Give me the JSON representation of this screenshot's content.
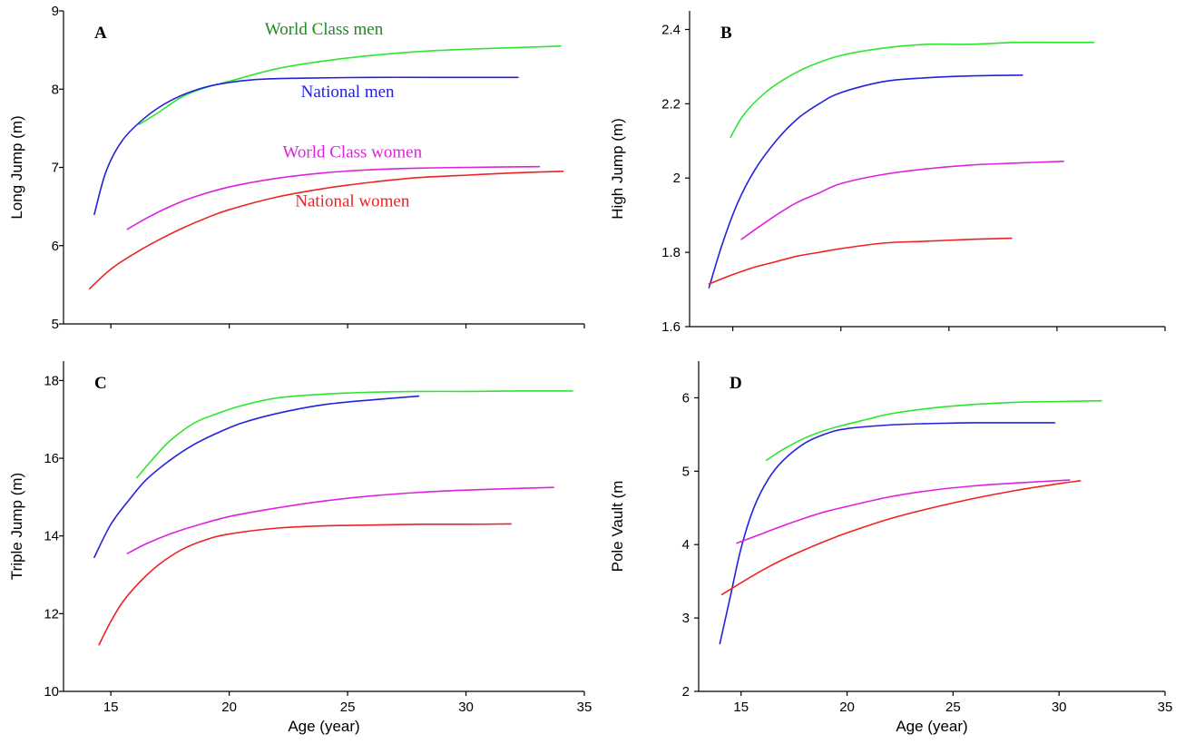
{
  "colors": {
    "world_class_men": "#2ee62e",
    "world_class_men_label": "#1f8a1f",
    "national_men": "#2222dd",
    "world_class_women": "#dd22dd",
    "national_women": "#ee2222"
  },
  "chart_data": [
    {
      "type": "line",
      "panel": "A",
      "xlabel": "",
      "ylabel": "Long Jump (m)",
      "xlim": [
        13,
        35
      ],
      "ylim": [
        5,
        9
      ],
      "xticks": [
        15,
        20,
        25,
        30,
        35
      ],
      "xtick_labels": [],
      "yticks": [
        5,
        6,
        7,
        8,
        9
      ],
      "ytick_labels": [
        "5",
        "6",
        "7",
        "8",
        "9"
      ],
      "series": [
        {
          "name": "World Class men",
          "key": "world_class_men",
          "label_color": "world_class_men_label",
          "x": [
            16.2,
            17,
            18,
            19,
            20,
            22,
            24,
            26,
            28,
            30,
            32,
            34
          ],
          "y": [
            7.55,
            7.7,
            7.9,
            8.02,
            8.1,
            8.26,
            8.36,
            8.43,
            8.48,
            8.51,
            8.53,
            8.55
          ]
        },
        {
          "name": "National men",
          "key": "national_men",
          "x": [
            14.3,
            14.8,
            15.5,
            16.5,
            17.5,
            18.5,
            19.5,
            21,
            23,
            26,
            29,
            32.2
          ],
          "y": [
            6.4,
            6.95,
            7.35,
            7.65,
            7.85,
            7.98,
            8.06,
            8.12,
            8.14,
            8.15,
            8.15,
            8.15
          ]
        },
        {
          "name": "World Class women",
          "key": "world_class_women",
          "x": [
            15.7,
            16.5,
            17.5,
            18.5,
            20,
            22,
            24,
            26,
            28,
            30,
            33.1
          ],
          "y": [
            6.21,
            6.35,
            6.5,
            6.62,
            6.75,
            6.86,
            6.93,
            6.97,
            6.99,
            7.0,
            7.01
          ]
        },
        {
          "name": "National women",
          "key": "national_women",
          "x": [
            14.1,
            15,
            16,
            17,
            18,
            19,
            20,
            22,
            24,
            26,
            28,
            30,
            32,
            34.1
          ],
          "y": [
            5.45,
            5.7,
            5.9,
            6.07,
            6.22,
            6.35,
            6.46,
            6.62,
            6.73,
            6.81,
            6.87,
            6.9,
            6.93,
            6.95
          ]
        }
      ]
    },
    {
      "type": "line",
      "panel": "B",
      "xlabel": "",
      "ylabel": "High Jump (m)",
      "xlim": [
        13,
        35
      ],
      "ylim": [
        1.6,
        2.45
      ],
      "xticks": [
        15,
        20,
        25,
        30,
        35
      ],
      "xtick_labels": [],
      "yticks": [
        1.6,
        1.8,
        2.0,
        2.2,
        2.4
      ],
      "ytick_labels": [
        "1.6",
        "1.8",
        "2",
        "2.2",
        "2.4"
      ],
      "series": [
        {
          "key": "world_class_men",
          "x": [
            14.9,
            15.5,
            16.5,
            17.5,
            18.5,
            20,
            22,
            24,
            26,
            28,
            30,
            31.7
          ],
          "y": [
            2.11,
            2.17,
            2.23,
            2.27,
            2.3,
            2.33,
            2.35,
            2.36,
            2.36,
            2.365,
            2.365,
            2.365
          ]
        },
        {
          "key": "national_men",
          "x": [
            13.9,
            14.5,
            15.2,
            16,
            17,
            18,
            19,
            20,
            22,
            24,
            26,
            28.4
          ],
          "y": [
            1.705,
            1.82,
            1.93,
            2.02,
            2.1,
            2.16,
            2.2,
            2.23,
            2.26,
            2.27,
            2.275,
            2.277
          ]
        },
        {
          "key": "world_class_women",
          "x": [
            15.4,
            16,
            17,
            18,
            19,
            20,
            22,
            24,
            26,
            28,
            30.3
          ],
          "y": [
            1.835,
            1.86,
            1.9,
            1.935,
            1.96,
            1.985,
            2.01,
            2.025,
            2.035,
            2.04,
            2.045
          ]
        },
        {
          "key": "national_women",
          "x": [
            13.9,
            15,
            16,
            17,
            18,
            19,
            20,
            22,
            24,
            26,
            27.9
          ],
          "y": [
            1.715,
            1.74,
            1.76,
            1.775,
            1.79,
            1.8,
            1.81,
            1.825,
            1.83,
            1.835,
            1.838
          ]
        }
      ]
    },
    {
      "type": "line",
      "panel": "C",
      "xlabel": "Age (year)",
      "ylabel": "Triple Jump (m)",
      "xlim": [
        13,
        35
      ],
      "ylim": [
        10,
        18.5
      ],
      "xticks": [
        15,
        20,
        25,
        30,
        35
      ],
      "xtick_labels": [
        "15",
        "20",
        "25",
        "30",
        "35"
      ],
      "yticks": [
        10,
        12,
        14,
        16,
        18
      ],
      "ytick_labels": [
        "10",
        "12",
        "14",
        "16",
        "18"
      ],
      "series": [
        {
          "key": "world_class_men",
          "x": [
            16.1,
            16.8,
            17.5,
            18.5,
            19.5,
            20.5,
            22,
            24,
            26,
            28,
            30,
            32,
            34.5
          ],
          "y": [
            15.5,
            16.0,
            16.45,
            16.9,
            17.15,
            17.35,
            17.55,
            17.65,
            17.7,
            17.72,
            17.72,
            17.73,
            17.73
          ]
        },
        {
          "key": "national_men",
          "x": [
            14.3,
            15,
            15.8,
            16.5,
            17.5,
            18.5,
            19.5,
            20.5,
            22,
            24,
            26,
            28
          ],
          "y": [
            13.45,
            14.3,
            14.95,
            15.45,
            15.95,
            16.35,
            16.65,
            16.9,
            17.15,
            17.38,
            17.5,
            17.6
          ]
        },
        {
          "key": "world_class_women",
          "x": [
            15.7,
            16.5,
            17.5,
            18.5,
            20,
            22,
            24,
            26,
            28,
            30,
            32,
            33.7
          ],
          "y": [
            13.55,
            13.8,
            14.05,
            14.25,
            14.5,
            14.72,
            14.9,
            15.03,
            15.12,
            15.18,
            15.22,
            15.25
          ]
        },
        {
          "key": "national_women",
          "x": [
            14.5,
            15,
            15.5,
            16.2,
            17,
            18,
            19,
            20,
            22,
            24,
            26,
            28,
            30,
            31.9
          ],
          "y": [
            11.2,
            11.8,
            12.3,
            12.8,
            13.25,
            13.65,
            13.9,
            14.05,
            14.2,
            14.26,
            14.28,
            14.3,
            14.3,
            14.31
          ]
        }
      ]
    },
    {
      "type": "line",
      "panel": "D",
      "xlabel": "Age (year)",
      "ylabel": "Pole Vault (m",
      "xlim": [
        13,
        35
      ],
      "ylim": [
        2,
        6.5
      ],
      "xticks": [
        15,
        20,
        25,
        30,
        35
      ],
      "xtick_labels": [
        "15",
        "20",
        "25",
        "30",
        "35"
      ],
      "yticks": [
        2,
        3,
        4,
        5,
        6
      ],
      "ytick_labels": [
        "2",
        "3",
        "4",
        "5",
        "6"
      ],
      "series": [
        {
          "key": "world_class_men",
          "x": [
            16.2,
            17,
            18,
            19,
            20,
            21,
            22,
            24,
            26,
            28,
            30,
            32
          ],
          "y": [
            5.15,
            5.3,
            5.45,
            5.56,
            5.64,
            5.71,
            5.78,
            5.86,
            5.91,
            5.94,
            5.95,
            5.96
          ]
        },
        {
          "key": "national_men",
          "x": [
            14,
            14.5,
            15,
            15.6,
            16.3,
            17,
            18,
            19,
            20,
            22,
            24,
            26,
            28,
            29.8
          ],
          "y": [
            2.65,
            3.3,
            3.95,
            4.5,
            4.9,
            5.15,
            5.38,
            5.51,
            5.58,
            5.63,
            5.65,
            5.66,
            5.66,
            5.66
          ]
        },
        {
          "key": "world_class_women",
          "x": [
            14.8,
            16,
            17,
            18,
            19,
            20,
            22,
            24,
            26,
            28,
            30.5
          ],
          "y": [
            4.02,
            4.15,
            4.26,
            4.36,
            4.45,
            4.52,
            4.65,
            4.74,
            4.8,
            4.84,
            4.88
          ]
        },
        {
          "key": "national_women",
          "x": [
            14.1,
            15,
            16,
            17,
            18,
            19,
            20,
            22,
            24,
            26,
            28,
            30,
            31
          ],
          "y": [
            3.32,
            3.48,
            3.65,
            3.8,
            3.93,
            4.05,
            4.16,
            4.35,
            4.5,
            4.63,
            4.74,
            4.83,
            4.87
          ]
        }
      ]
    }
  ],
  "panel_a_labels": [
    {
      "key": "world_class_men_label",
      "text": "World Class men",
      "x": 24,
      "y": 8.7
    },
    {
      "key": "national_men",
      "text": "National men",
      "x": 25,
      "y": 7.9
    },
    {
      "key": "world_class_women",
      "text": "World Class women",
      "x": 25.2,
      "y": 7.13
    },
    {
      "key": "national_women",
      "text": "National women",
      "x": 25.2,
      "y": 6.5
    }
  ]
}
